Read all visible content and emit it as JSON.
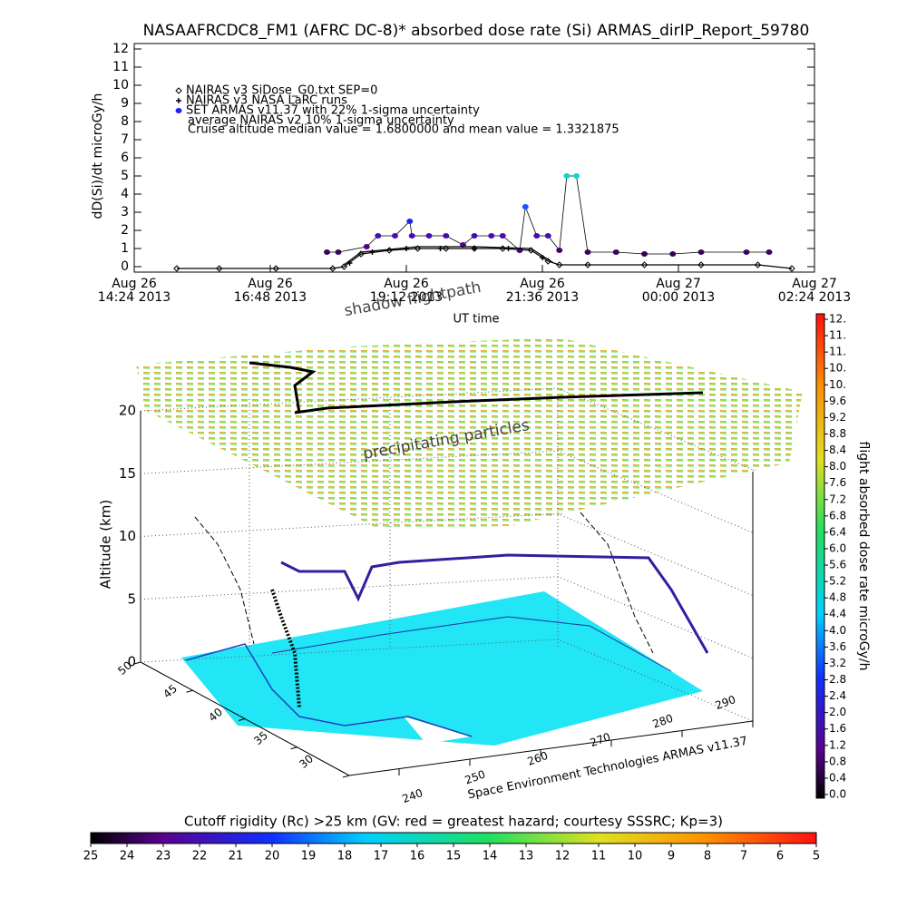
{
  "chart_data": [
    {
      "type": "line",
      "title": "NASAAFRCDC8_FM1 (AFRC DC-8)* absorbed dose rate (Si) ARMAS_dirIP_Report_59780",
      "ylabel": "dD(Si)/dt microGy/h",
      "xlabel": "UT time",
      "annotation": "Cruise altitude median value = 1.6800000 and mean value = 1.3321875",
      "xlim": [
        0,
        12
      ],
      "xticks": [
        {
          "value": 0,
          "label": "Aug 26\n14:24 2013"
        },
        {
          "value": 2.4,
          "label": "Aug 26\n16:48 2013"
        },
        {
          "value": 4.8,
          "label": "Aug 26\n19:12 2013"
        },
        {
          "value": 7.2,
          "label": "Aug 26\n21:36 2013"
        },
        {
          "value": 9.6,
          "label": "Aug 27\n00:00 2013"
        },
        {
          "value": 12,
          "label": "Aug 27\n02:24 2013"
        }
      ],
      "ylim": [
        -0.3,
        12.3
      ],
      "yticks": [
        0,
        1,
        2,
        3,
        4,
        5,
        6,
        7,
        8,
        9,
        10,
        11,
        12
      ],
      "series": [
        {
          "name": "NAIRAS v3 SiDose_G0.txt SEP=0",
          "color": "#000000",
          "marker": "diamond",
          "x": [
            0.75,
            1.5,
            2.5,
            3.5,
            3.7,
            4.0,
            4.5,
            5.0,
            5.5,
            6.0,
            6.5,
            7.0,
            7.3,
            7.5,
            8.0,
            9.0,
            10.0,
            11.0,
            11.6
          ],
          "values": [
            -0.1,
            -0.1,
            -0.1,
            -0.1,
            0.0,
            0.7,
            0.9,
            1.0,
            1.0,
            1.0,
            1.0,
            0.9,
            0.3,
            0.1,
            0.1,
            0.1,
            0.1,
            0.1,
            -0.1
          ]
        },
        {
          "name": "NAIRAS v3 NASA LaRC runs",
          "color": "#000000",
          "marker": "plus",
          "x": [
            3.8,
            4.2,
            4.8,
            5.4,
            6.0,
            6.6,
            7.2
          ],
          "values": [
            0.2,
            0.8,
            1.0,
            1.0,
            1.0,
            1.0,
            0.5
          ]
        },
        {
          "name": "SET ARMAS v11.37 with 22% 1-sigma uncertainty",
          "color": "#2020ff",
          "marker": "circle",
          "x": [
            3.4,
            3.6,
            4.1,
            4.3,
            4.6,
            4.86,
            4.9,
            5.2,
            5.5,
            5.8,
            6.0,
            6.3,
            6.5,
            6.8,
            6.9,
            7.1,
            7.3,
            7.5,
            7.63,
            7.8,
            8.0,
            8.5,
            9.0,
            9.5,
            10.0,
            10.8,
            11.2
          ],
          "values": [
            0.8,
            0.8,
            1.1,
            1.7,
            1.7,
            2.5,
            1.7,
            1.7,
            1.7,
            1.2,
            1.7,
            1.7,
            1.7,
            0.9,
            3.3,
            1.7,
            1.7,
            0.9,
            5.0,
            5.0,
            0.8,
            0.8,
            0.7,
            0.7,
            0.8,
            0.8,
            0.8
          ]
        },
        {
          "name": "average NAIRAS v2 10% 1-sigma uncertainty",
          "color": "#000000",
          "marker": "none",
          "x": [
            3.7,
            4.0,
            5.0,
            6.0,
            7.0,
            7.4
          ],
          "values": [
            0.1,
            0.8,
            1.1,
            1.1,
            1.0,
            0.2
          ]
        }
      ]
    },
    {
      "type": "surface3d",
      "zlabel": "Altitude (km)",
      "zlim": [
        0,
        20
      ],
      "zticks": [
        0,
        5,
        10,
        15,
        20
      ],
      "ylim": [
        50,
        30
      ],
      "yticks": [
        50,
        45,
        40,
        35,
        30
      ],
      "xlim": [
        240,
        290
      ],
      "xticks": [
        240,
        250,
        260,
        270,
        280,
        290
      ],
      "annotations": [
        "shadow flightpath",
        "precipitating particles"
      ],
      "credit": "Space Environment Technologies ARMAS v11.37"
    },
    {
      "type": "colorbar",
      "orientation": "vertical",
      "label": "flight absorbed dose rate microGy/h",
      "ylim": [
        0,
        11.6
      ],
      "yticks": [
        {
          "value": 0,
          "label": "0.0"
        },
        0.4,
        0.8,
        1.2,
        1.6,
        {
          "value": 2,
          "label": "2.0"
        },
        2.4,
        2.8,
        3.2,
        3.6,
        {
          "value": 4,
          "label": "4.0"
        },
        4.4,
        4.8,
        5.2,
        5.6,
        {
          "value": 6,
          "label": "6.0"
        },
        6.4,
        6.8,
        7.2,
        7.6,
        {
          "value": 8,
          "label": "8.0"
        },
        8.4,
        8.8,
        9.2,
        9.6,
        {
          "value": 10,
          "label": "10."
        },
        {
          "value": 10.4,
          "label": "10."
        },
        {
          "value": 10.8,
          "label": "11."
        },
        {
          "value": 11.2,
          "label": "11."
        },
        {
          "value": 11.6,
          "label": "12."
        }
      ]
    },
    {
      "type": "colorbar",
      "orientation": "horizontal",
      "title": "Cutoff rigidity (Rc) >25 km (GV: red = greatest hazard; courtesy SSSRC; Kp=3)",
      "xlim": [
        25,
        5
      ],
      "xticks": [
        25,
        24,
        23,
        22,
        21,
        20,
        19,
        18,
        17,
        16,
        15,
        14,
        13,
        12,
        11,
        10,
        9,
        8,
        7,
        6,
        5
      ]
    }
  ]
}
